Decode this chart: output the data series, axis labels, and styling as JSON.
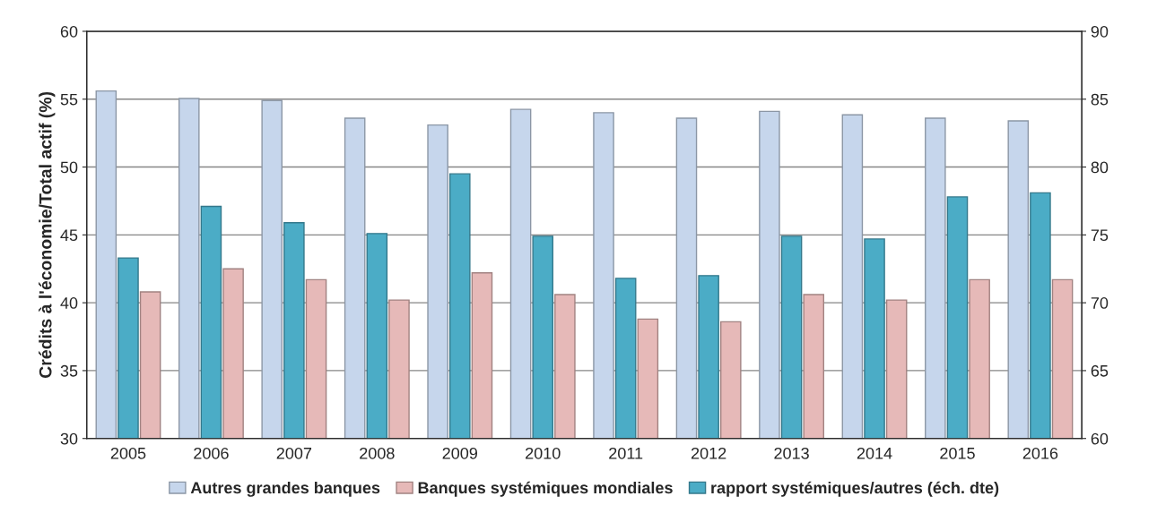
{
  "chart_data": {
    "type": "bar",
    "categories": [
      "2005",
      "2006",
      "2007",
      "2008",
      "2009",
      "2010",
      "2011",
      "2012",
      "2013",
      "2014",
      "2015",
      "2016"
    ],
    "series": [
      {
        "name": "Autres grandes banques",
        "color": "#c6d6ec",
        "values": [
          55.6,
          55.05,
          54.9,
          53.6,
          53.1,
          54.25,
          54.0,
          53.6,
          54.1,
          53.85,
          53.6,
          53.4
        ]
      },
      {
        "name": "rapport systémiques/autres (éch. dte)",
        "color": "#4bacc6",
        "axis": "y2",
        "values": [
          73.3,
          77.1,
          75.9,
          75.1,
          79.5,
          74.9,
          71.8,
          72.0,
          74.9,
          74.7,
          77.8,
          78.1
        ]
      },
      {
        "name": "Banques systémiques mondiales",
        "color": "#e6b9b8",
        "values": [
          40.8,
          42.5,
          41.7,
          40.2,
          42.2,
          40.6,
          38.8,
          38.6,
          40.6,
          40.2,
          41.7,
          41.7
        ]
      }
    ],
    "ylabel": "Crédits à l'économie/Total actif (%)",
    "ylim": [
      30,
      60
    ],
    "yticks": [
      30,
      35,
      40,
      45,
      50,
      55,
      60
    ],
    "y2lim": [
      60,
      90
    ],
    "y2ticks": [
      60,
      65,
      70,
      75,
      80,
      85,
      90
    ],
    "grid": "y",
    "legend": "bottom"
  }
}
